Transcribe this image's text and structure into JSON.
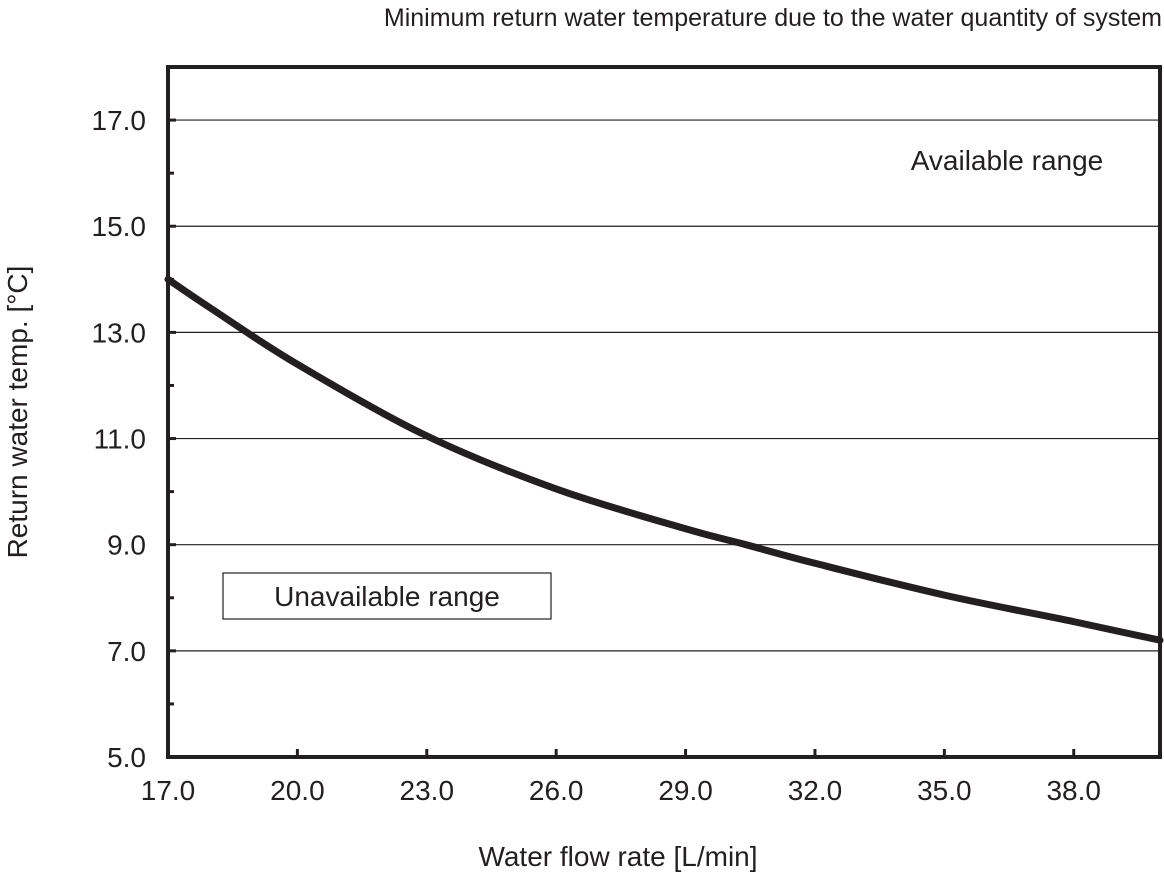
{
  "chart_data": {
    "type": "line",
    "title": "Minimum return water temperature due to the water quantity of system",
    "xlabel": "Water flow rate [L/min]",
    "ylabel": "Return water temp. [°C]",
    "xlim": [
      17,
      40
    ],
    "ylim": [
      5,
      18
    ],
    "xticks": [
      "17.0",
      "20.0",
      "23.0",
      "26.0",
      "29.0",
      "32.0",
      "35.0",
      "38.0"
    ],
    "yticks": [
      "5.0",
      "7.0",
      "9.0",
      "11.0",
      "13.0",
      "15.0",
      "17.0"
    ],
    "grid": true,
    "series": [
      {
        "name": "Minimum return water temperature",
        "x": [
          17,
          18,
          20,
          23,
          26,
          29,
          30.4,
          32,
          35,
          38,
          40
        ],
        "y": [
          14.0,
          13.45,
          12.4,
          11.05,
          10.05,
          9.3,
          9.0,
          8.65,
          8.05,
          7.55,
          7.2
        ]
      }
    ],
    "annotations": {
      "available": "Available range",
      "unavailable": "Unavailable range"
    },
    "colors": {
      "line": "#231f20",
      "grid": "#231f20"
    }
  }
}
